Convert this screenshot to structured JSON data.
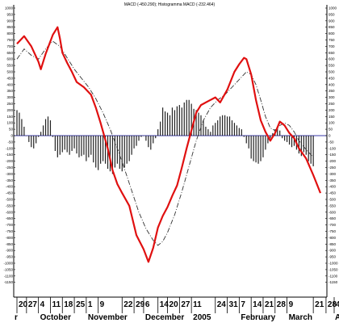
{
  "chart_data": {
    "type": "line",
    "title": "MACD (-450.290); Histogramma MACD (-232.464)",
    "xlabel": "",
    "ylabel": "",
    "ylim": [
      -1200,
      1000
    ],
    "grid": false,
    "zero_line": 0,
    "y_ticks": [
      1000,
      950,
      900,
      850,
      800,
      750,
      700,
      650,
      600,
      550,
      500,
      450,
      400,
      350,
      300,
      250,
      200,
      150,
      100,
      50,
      0,
      -50,
      -100,
      -150,
      -200,
      -250,
      -300,
      -350,
      -400,
      -450,
      -500,
      -550,
      -600,
      -650,
      -700,
      -750,
      -800,
      -850,
      -900,
      -950,
      -1000,
      -1050,
      -1100,
      -1150
    ],
    "x_index_range": [
      0,
      128
    ],
    "x_ticks": [
      {
        "label": "20",
        "i": 0
      },
      {
        "label": "27",
        "i": 4
      },
      {
        "label": "4",
        "i": 9
      },
      {
        "label": "11",
        "i": 14
      },
      {
        "label": "18",
        "i": 19
      },
      {
        "label": "25",
        "i": 24
      },
      {
        "label": "1",
        "i": 29
      },
      {
        "label": "9",
        "i": 34
      },
      {
        "label": "22",
        "i": 44
      },
      {
        "label": "29",
        "i": 49
      },
      {
        "label": "6",
        "i": 53
      },
      {
        "label": "14",
        "i": 59
      },
      {
        "label": "20",
        "i": 63
      },
      {
        "label": "27",
        "i": 68
      },
      {
        "label": "11",
        "i": 73
      },
      {
        "label": "24",
        "i": 83
      },
      {
        "label": "31",
        "i": 88
      },
      {
        "label": "7",
        "i": 93
      },
      {
        "label": "14",
        "i": 98
      },
      {
        "label": "21",
        "i": 103
      },
      {
        "label": "28",
        "i": 108
      },
      {
        "label": "9",
        "i": 113
      },
      {
        "label": "21",
        "i": 124
      }
    ],
    "right_edge_ticks": [
      {
        "label": "28",
        "i": 130
      },
      {
        "label": "4",
        "i": 135
      }
    ],
    "month_labels": [
      {
        "label": "r",
        "i": 0
      },
      {
        "label": "October",
        "i": 9
      },
      {
        "label": "November",
        "i": 29
      },
      {
        "label": "December",
        "i": 53
      },
      {
        "label": "2005",
        "i": 73
      },
      {
        "label": "February",
        "i": 93
      },
      {
        "label": "March",
        "i": 113
      },
      {
        "label": "A",
        "i": 135
      }
    ],
    "series": [
      {
        "color": "#e01010",
        "style": "solid",
        "points": [
          [
            0,
            720
          ],
          [
            3,
            780
          ],
          [
            6,
            700
          ],
          [
            9,
            580
          ],
          [
            10,
            520
          ],
          [
            12,
            640
          ],
          [
            15,
            790
          ],
          [
            17,
            850
          ],
          [
            18,
            760
          ],
          [
            19,
            650
          ],
          [
            21,
            570
          ],
          [
            23,
            500
          ],
          [
            25,
            420
          ],
          [
            28,
            380
          ],
          [
            31,
            320
          ],
          [
            33,
            220
          ],
          [
            35,
            100
          ],
          [
            38,
            -100
          ],
          [
            40,
            -270
          ],
          [
            42,
            -380
          ],
          [
            44,
            -450
          ],
          [
            47,
            -550
          ],
          [
            50,
            -780
          ],
          [
            53,
            -890
          ],
          [
            55,
            -990
          ],
          [
            57,
            -880
          ],
          [
            59,
            -720
          ],
          [
            61,
            -630
          ],
          [
            63,
            -560
          ],
          [
            65,
            -470
          ],
          [
            67,
            -390
          ],
          [
            69,
            -250
          ],
          [
            71,
            -100
          ],
          [
            73,
            40
          ],
          [
            75,
            180
          ],
          [
            77,
            240
          ],
          [
            80,
            270
          ],
          [
            83,
            300
          ],
          [
            85,
            260
          ],
          [
            88,
            360
          ],
          [
            91,
            500
          ],
          [
            93,
            560
          ],
          [
            95,
            610
          ],
          [
            96,
            600
          ],
          [
            98,
            480
          ],
          [
            100,
            280
          ],
          [
            102,
            120
          ],
          [
            104,
            30
          ],
          [
            106,
            -40
          ],
          [
            108,
            20
          ],
          [
            110,
            110
          ],
          [
            112,
            80
          ],
          [
            114,
            20
          ],
          [
            116,
            -20
          ],
          [
            118,
            -100
          ],
          [
            121,
            -180
          ],
          [
            124,
            -310
          ],
          [
            127,
            -450
          ]
        ]
      },
      {
        "color": "#333333",
        "style": "dash-dot",
        "points": [
          [
            0,
            600
          ],
          [
            3,
            680
          ],
          [
            6,
            630
          ],
          [
            9,
            600
          ],
          [
            12,
            680
          ],
          [
            15,
            740
          ],
          [
            18,
            700
          ],
          [
            21,
            610
          ],
          [
            24,
            520
          ],
          [
            27,
            450
          ],
          [
            30,
            380
          ],
          [
            33,
            290
          ],
          [
            36,
            180
          ],
          [
            39,
            50
          ],
          [
            42,
            -100
          ],
          [
            45,
            -260
          ],
          [
            48,
            -430
          ],
          [
            51,
            -600
          ],
          [
            54,
            -730
          ],
          [
            57,
            -820
          ],
          [
            59,
            -860
          ],
          [
            61,
            -830
          ],
          [
            63,
            -760
          ],
          [
            66,
            -620
          ],
          [
            69,
            -440
          ],
          [
            72,
            -240
          ],
          [
            75,
            -40
          ],
          [
            78,
            120
          ],
          [
            81,
            220
          ],
          [
            84,
            280
          ],
          [
            87,
            320
          ],
          [
            90,
            380
          ],
          [
            93,
            440
          ],
          [
            96,
            500
          ],
          [
            98,
            480
          ],
          [
            100,
            400
          ],
          [
            102,
            280
          ],
          [
            104,
            150
          ],
          [
            106,
            60
          ],
          [
            108,
            40
          ],
          [
            110,
            80
          ],
          [
            112,
            100
          ],
          [
            114,
            80
          ],
          [
            116,
            30
          ],
          [
            118,
            -40
          ],
          [
            121,
            -110
          ],
          [
            124,
            -170
          ]
        ]
      }
    ],
    "histogram": {
      "color": "#222222",
      "bars": [
        [
          0,
          200
        ],
        [
          1,
          180
        ],
        [
          2,
          130
        ],
        [
          3,
          70
        ],
        [
          4,
          0
        ],
        [
          5,
          -50
        ],
        [
          6,
          -90
        ],
        [
          7,
          -100
        ],
        [
          8,
          -60
        ],
        [
          9,
          -10
        ],
        [
          10,
          30
        ],
        [
          11,
          80
        ],
        [
          12,
          130
        ],
        [
          13,
          150
        ],
        [
          14,
          120
        ],
        [
          15,
          -10
        ],
        [
          16,
          -120
        ],
        [
          17,
          -170
        ],
        [
          18,
          -150
        ],
        [
          19,
          -130
        ],
        [
          20,
          -110
        ],
        [
          21,
          -130
        ],
        [
          22,
          -150
        ],
        [
          23,
          -120
        ],
        [
          24,
          -100
        ],
        [
          25,
          -140
        ],
        [
          26,
          -170
        ],
        [
          27,
          -160
        ],
        [
          28,
          -150
        ],
        [
          29,
          -200
        ],
        [
          30,
          -170
        ],
        [
          31,
          -150
        ],
        [
          32,
          -210
        ],
        [
          33,
          -250
        ],
        [
          34,
          -270
        ],
        [
          35,
          -220
        ],
        [
          36,
          -200
        ],
        [
          37,
          -220
        ],
        [
          38,
          -260
        ],
        [
          39,
          -280
        ],
        [
          40,
          -300
        ],
        [
          41,
          -250
        ],
        [
          42,
          -220
        ],
        [
          43,
          -260
        ],
        [
          44,
          -280
        ],
        [
          45,
          -250
        ],
        [
          46,
          -220
        ],
        [
          47,
          -200
        ],
        [
          48,
          -150
        ],
        [
          49,
          -100
        ],
        [
          50,
          -80
        ],
        [
          51,
          -40
        ],
        [
          52,
          -10
        ],
        [
          53,
          0
        ],
        [
          54,
          -40
        ],
        [
          55,
          -90
        ],
        [
          56,
          -110
        ],
        [
          57,
          -60
        ],
        [
          58,
          -20
        ],
        [
          59,
          50
        ],
        [
          60,
          110
        ],
        [
          61,
          220
        ],
        [
          62,
          190
        ],
        [
          63,
          180
        ],
        [
          64,
          160
        ],
        [
          65,
          220
        ],
        [
          66,
          200
        ],
        [
          67,
          230
        ],
        [
          68,
          240
        ],
        [
          69,
          220
        ],
        [
          70,
          260
        ],
        [
          71,
          280
        ],
        [
          72,
          280
        ],
        [
          73,
          250
        ],
        [
          74,
          210
        ],
        [
          75,
          200
        ],
        [
          76,
          180
        ],
        [
          77,
          160
        ],
        [
          78,
          120
        ],
        [
          79,
          70
        ],
        [
          80,
          50
        ],
        [
          81,
          30
        ],
        [
          82,
          80
        ],
        [
          83,
          100
        ],
        [
          84,
          120
        ],
        [
          85,
          150
        ],
        [
          86,
          160
        ],
        [
          87,
          160
        ],
        [
          88,
          150
        ],
        [
          89,
          150
        ],
        [
          90,
          120
        ],
        [
          91,
          100
        ],
        [
          92,
          80
        ],
        [
          93,
          60
        ],
        [
          94,
          50
        ],
        [
          95,
          -10
        ],
        [
          96,
          -60
        ],
        [
          97,
          -100
        ],
        [
          98,
          -180
        ],
        [
          99,
          -200
        ],
        [
          100,
          -210
        ],
        [
          101,
          -220
        ],
        [
          102,
          -200
        ],
        [
          103,
          -170
        ],
        [
          104,
          -110
        ],
        [
          105,
          -60
        ],
        [
          106,
          -20
        ],
        [
          107,
          20
        ],
        [
          108,
          50
        ],
        [
          109,
          60
        ],
        [
          110,
          40
        ],
        [
          111,
          -20
        ],
        [
          112,
          -40
        ],
        [
          113,
          -50
        ],
        [
          114,
          -70
        ],
        [
          115,
          -90
        ],
        [
          116,
          -80
        ],
        [
          117,
          -110
        ],
        [
          118,
          -140
        ],
        [
          119,
          -160
        ],
        [
          120,
          -130
        ],
        [
          121,
          -150
        ],
        [
          122,
          -200
        ],
        [
          123,
          -220
        ],
        [
          124,
          -240
        ]
      ]
    }
  }
}
